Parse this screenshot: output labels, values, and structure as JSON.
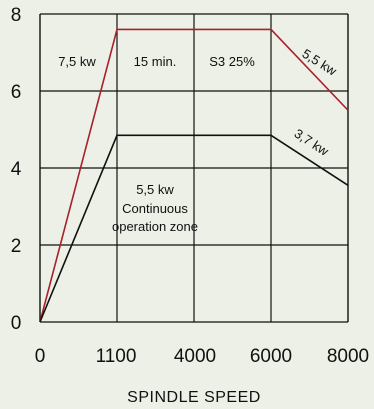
{
  "chart_data": {
    "type": "line",
    "title": "",
    "xlabel": "SPINDLE SPEED",
    "ylabel": "",
    "x_categories": [
      "0",
      "1100",
      "4000",
      "6000",
      "8000"
    ],
    "ylim": [
      0,
      8
    ],
    "y_ticks": [
      "0",
      "2",
      "4",
      "6",
      "8"
    ],
    "grid": true,
    "series": [
      {
        "color": "#a8202a",
        "points": [
          [
            0,
            0
          ],
          [
            1100,
            7.6
          ],
          [
            6000,
            7.6
          ],
          [
            8000,
            5.5
          ]
        ]
      },
      {
        "color": "#111111",
        "points": [
          [
            0,
            0
          ],
          [
            1100,
            4.85
          ],
          [
            6000,
            4.85
          ],
          [
            8000,
            3.55
          ]
        ]
      }
    ],
    "annotations": {
      "s3_power": "7,5 kw",
      "s3_time": "15 min.",
      "s3_duty": "S3 25%",
      "s3_line_label": "5,5 kw",
      "cont_line_label": "3,7 kw",
      "cont_power": "5,5 kw",
      "cont_line1": "Continuous",
      "cont_line2": "operation zone"
    }
  }
}
